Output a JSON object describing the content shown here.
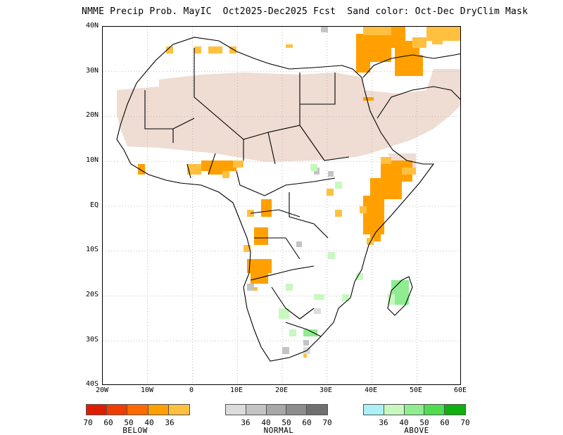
{
  "title": "NMME Precip Prob. MayIC  Oct2025-Dec2025 Fcst  Sand color: Oct-Dec DryClim Mask",
  "lat_labels": [
    "40N",
    "30N",
    "20N",
    "10N",
    "EQ",
    "10S",
    "20S",
    "30S",
    "40S"
  ],
  "lon_labels": [
    "20W",
    "10W",
    "0",
    "10E",
    "20E",
    "30E",
    "40E",
    "50E",
    "60E"
  ],
  "legends": {
    "below": {
      "title": "BELOW",
      "colors": [
        "#e01c00",
        "#f03c00",
        "#ff6a00",
        "#ffa000",
        "#ffc040"
      ],
      "values": [
        "70",
        "60",
        "50",
        "40",
        "36"
      ]
    },
    "normal": {
      "title": "NORMAL",
      "colors": [
        "#dcdcdc",
        "#c4c4c4",
        "#a8a8a8",
        "#8c8c8c",
        "#707070"
      ],
      "values": [
        "36",
        "40",
        "50",
        "60",
        "70"
      ]
    },
    "above": {
      "title": "ABOVE",
      "colors": [
        "#aef0f8",
        "#c8f8c0",
        "#90ec90",
        "#50dc50",
        "#10b010"
      ],
      "values": [
        "36",
        "40",
        "50",
        "60",
        "70"
      ]
    }
  },
  "colors": {
    "dry_mask": "#efdcd2",
    "frame": "#000000",
    "grid": "#999999"
  }
}
